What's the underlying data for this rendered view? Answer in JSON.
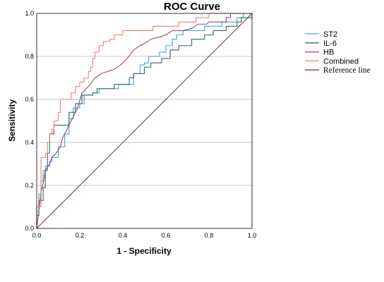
{
  "chart_data": {
    "type": "line",
    "title": "ROC Curve",
    "xlabel": "1 - Specificity",
    "ylabel": "Sensitivity",
    "xlim": [
      0,
      1
    ],
    "ylim": [
      0,
      1
    ],
    "xticks": [
      "0.0",
      "0.2",
      "0.4",
      "0.6",
      "0.8",
      "1.0"
    ],
    "yticks": [
      "0.0",
      "0.2",
      "0.4",
      "0.6",
      "0.8",
      "1.0"
    ],
    "grid": "horizontal",
    "legend_position": "right",
    "series": [
      {
        "name": "ST2",
        "color": "#4aa3d6",
        "points": [
          [
            0,
            0
          ],
          [
            0,
            0.08
          ],
          [
            0.01,
            0.08
          ],
          [
            0.01,
            0.16
          ],
          [
            0.02,
            0.16
          ],
          [
            0.02,
            0.22
          ],
          [
            0.03,
            0.22
          ],
          [
            0.03,
            0.27
          ],
          [
            0.04,
            0.27
          ],
          [
            0.04,
            0.29
          ],
          [
            0.06,
            0.29
          ],
          [
            0.06,
            0.31
          ],
          [
            0.07,
            0.31
          ],
          [
            0.07,
            0.33
          ],
          [
            0.1,
            0.33
          ],
          [
            0.1,
            0.38
          ],
          [
            0.13,
            0.38
          ],
          [
            0.13,
            0.44
          ],
          [
            0.15,
            0.44
          ],
          [
            0.15,
            0.51
          ],
          [
            0.17,
            0.51
          ],
          [
            0.17,
            0.56
          ],
          [
            0.2,
            0.56
          ],
          [
            0.2,
            0.58
          ],
          [
            0.22,
            0.58
          ],
          [
            0.22,
            0.62
          ],
          [
            0.26,
            0.62
          ],
          [
            0.26,
            0.63
          ],
          [
            0.29,
            0.63
          ],
          [
            0.29,
            0.65
          ],
          [
            0.38,
            0.65
          ],
          [
            0.38,
            0.67
          ],
          [
            0.45,
            0.67
          ],
          [
            0.45,
            0.72
          ],
          [
            0.48,
            0.72
          ],
          [
            0.48,
            0.76
          ],
          [
            0.5,
            0.76
          ],
          [
            0.5,
            0.77
          ],
          [
            0.52,
            0.77
          ],
          [
            0.52,
            0.8
          ],
          [
            0.57,
            0.8
          ],
          [
            0.57,
            0.82
          ],
          [
            0.6,
            0.82
          ],
          [
            0.6,
            0.85
          ],
          [
            0.63,
            0.85
          ],
          [
            0.63,
            0.88
          ],
          [
            0.65,
            0.88
          ],
          [
            0.65,
            0.9
          ],
          [
            0.68,
            0.9
          ],
          [
            0.68,
            0.92
          ],
          [
            0.78,
            0.92
          ],
          [
            0.78,
            0.94
          ],
          [
            0.86,
            0.94
          ],
          [
            0.86,
            0.96
          ],
          [
            0.93,
            0.96
          ],
          [
            0.93,
            0.98
          ],
          [
            0.96,
            0.98
          ],
          [
            0.96,
            1.0
          ],
          [
            1.0,
            1.0
          ]
        ]
      },
      {
        "name": "IL-6",
        "color": "#2e6b60",
        "points": [
          [
            0,
            0
          ],
          [
            0,
            0.06
          ],
          [
            0.01,
            0.06
          ],
          [
            0.01,
            0.13
          ],
          [
            0.03,
            0.13
          ],
          [
            0.03,
            0.19
          ],
          [
            0.04,
            0.19
          ],
          [
            0.04,
            0.27
          ],
          [
            0.05,
            0.27
          ],
          [
            0.05,
            0.35
          ],
          [
            0.06,
            0.35
          ],
          [
            0.06,
            0.44
          ],
          [
            0.08,
            0.44
          ],
          [
            0.08,
            0.48
          ],
          [
            0.15,
            0.48
          ],
          [
            0.15,
            0.54
          ],
          [
            0.18,
            0.54
          ],
          [
            0.18,
            0.58
          ],
          [
            0.21,
            0.58
          ],
          [
            0.21,
            0.62
          ],
          [
            0.26,
            0.62
          ],
          [
            0.26,
            0.63
          ],
          [
            0.28,
            0.63
          ],
          [
            0.28,
            0.65
          ],
          [
            0.36,
            0.65
          ],
          [
            0.36,
            0.67
          ],
          [
            0.43,
            0.67
          ],
          [
            0.43,
            0.7
          ],
          [
            0.45,
            0.7
          ],
          [
            0.45,
            0.72
          ],
          [
            0.5,
            0.72
          ],
          [
            0.5,
            0.75
          ],
          [
            0.53,
            0.75
          ],
          [
            0.53,
            0.77
          ],
          [
            0.58,
            0.77
          ],
          [
            0.58,
            0.79
          ],
          [
            0.62,
            0.79
          ],
          [
            0.62,
            0.83
          ],
          [
            0.66,
            0.83
          ],
          [
            0.66,
            0.85
          ],
          [
            0.72,
            0.85
          ],
          [
            0.72,
            0.88
          ],
          [
            0.78,
            0.88
          ],
          [
            0.78,
            0.9
          ],
          [
            0.82,
            0.9
          ],
          [
            0.82,
            0.92
          ],
          [
            0.88,
            0.92
          ],
          [
            0.88,
            0.94
          ],
          [
            0.93,
            0.94
          ],
          [
            0.93,
            0.96
          ],
          [
            0.95,
            0.96
          ],
          [
            0.95,
            0.98
          ],
          [
            1.0,
            0.98
          ],
          [
            1.0,
            1.0
          ]
        ]
      },
      {
        "name": "HB",
        "color": "#a04472",
        "points": [
          [
            0,
            0
          ],
          [
            0.01,
            0.08
          ],
          [
            0.02,
            0.17
          ],
          [
            0.03,
            0.21
          ],
          [
            0.04,
            0.27
          ],
          [
            0.06,
            0.3
          ],
          [
            0.07,
            0.33
          ],
          [
            0.09,
            0.35
          ],
          [
            0.11,
            0.38
          ],
          [
            0.12,
            0.42
          ],
          [
            0.14,
            0.46
          ],
          [
            0.15,
            0.48
          ],
          [
            0.17,
            0.52
          ],
          [
            0.19,
            0.56
          ],
          [
            0.21,
            0.63
          ],
          [
            0.23,
            0.65
          ],
          [
            0.25,
            0.67
          ],
          [
            0.27,
            0.7
          ],
          [
            0.3,
            0.72
          ],
          [
            0.33,
            0.73
          ],
          [
            0.36,
            0.74
          ],
          [
            0.39,
            0.76
          ],
          [
            0.42,
            0.79
          ],
          [
            0.45,
            0.83
          ],
          [
            0.48,
            0.85
          ],
          [
            0.5,
            0.86
          ],
          [
            0.53,
            0.88
          ],
          [
            0.57,
            0.89
          ],
          [
            0.6,
            0.9
          ],
          [
            0.63,
            0.92
          ],
          [
            0.68,
            0.92
          ],
          [
            0.72,
            0.93
          ],
          [
            0.75,
            0.95
          ],
          [
            0.79,
            0.95
          ],
          [
            0.8,
            0.96
          ],
          [
            0.88,
            0.96
          ],
          [
            0.88,
            0.98
          ],
          [
            0.9,
            0.98
          ],
          [
            0.9,
            1.0
          ],
          [
            1.0,
            1.0
          ]
        ]
      },
      {
        "name": "Combined",
        "color": "#f07c7c",
        "points": [
          [
            0,
            0
          ],
          [
            0,
            0.1
          ],
          [
            0.02,
            0.1
          ],
          [
            0.02,
            0.33
          ],
          [
            0.04,
            0.33
          ],
          [
            0.04,
            0.35
          ],
          [
            0.05,
            0.35
          ],
          [
            0.05,
            0.4
          ],
          [
            0.06,
            0.4
          ],
          [
            0.06,
            0.44
          ],
          [
            0.07,
            0.44
          ],
          [
            0.07,
            0.46
          ],
          [
            0.08,
            0.46
          ],
          [
            0.08,
            0.5
          ],
          [
            0.1,
            0.5
          ],
          [
            0.1,
            0.54
          ],
          [
            0.11,
            0.54
          ],
          [
            0.11,
            0.6
          ],
          [
            0.16,
            0.6
          ],
          [
            0.16,
            0.63
          ],
          [
            0.18,
            0.63
          ],
          [
            0.18,
            0.66
          ],
          [
            0.2,
            0.66
          ],
          [
            0.2,
            0.68
          ],
          [
            0.22,
            0.68
          ],
          [
            0.22,
            0.7
          ],
          [
            0.24,
            0.7
          ],
          [
            0.24,
            0.73
          ],
          [
            0.25,
            0.73
          ],
          [
            0.25,
            0.75
          ],
          [
            0.26,
            0.75
          ],
          [
            0.26,
            0.79
          ],
          [
            0.27,
            0.79
          ],
          [
            0.27,
            0.82
          ],
          [
            0.29,
            0.82
          ],
          [
            0.29,
            0.85
          ],
          [
            0.31,
            0.85
          ],
          [
            0.31,
            0.87
          ],
          [
            0.34,
            0.87
          ],
          [
            0.34,
            0.88
          ],
          [
            0.36,
            0.88
          ],
          [
            0.36,
            0.9
          ],
          [
            0.4,
            0.9
          ],
          [
            0.4,
            0.92
          ],
          [
            0.54,
            0.92
          ],
          [
            0.54,
            0.94
          ],
          [
            0.66,
            0.94
          ],
          [
            0.66,
            0.96
          ],
          [
            0.74,
            0.96
          ],
          [
            0.74,
            0.98
          ],
          [
            0.8,
            0.98
          ],
          [
            0.8,
            1.0
          ],
          [
            1.0,
            1.0
          ]
        ]
      },
      {
        "name": "Reference line",
        "color": "#7a3a56",
        "points": [
          [
            0,
            0
          ],
          [
            1,
            1
          ]
        ]
      }
    ]
  }
}
